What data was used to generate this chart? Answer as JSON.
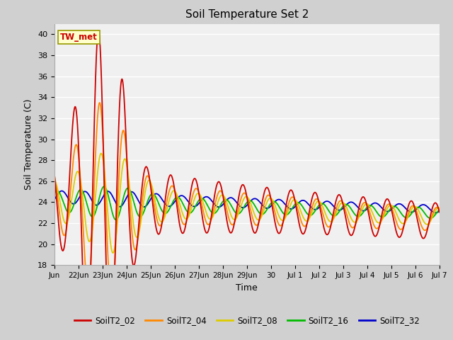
{
  "title": "Soil Temperature Set 2",
  "xlabel": "Time",
  "ylabel": "Soil Temperature (C)",
  "ylim": [
    18,
    41
  ],
  "yticks": [
    18,
    20,
    22,
    24,
    26,
    28,
    30,
    32,
    34,
    36,
    38,
    40
  ],
  "series_colors": {
    "SoilT2_02": "#cc0000",
    "SoilT2_04": "#ff8800",
    "SoilT2_08": "#ddcc00",
    "SoilT2_16": "#00bb00",
    "SoilT2_32": "#0000cc"
  },
  "annotation_text": "TW_met",
  "annotation_bg": "#ffffcc",
  "annotation_edge": "#999900",
  "fig_bg": "#d0d0d0",
  "plot_bg": "#f0f0f0",
  "grid_color": "#ffffff"
}
